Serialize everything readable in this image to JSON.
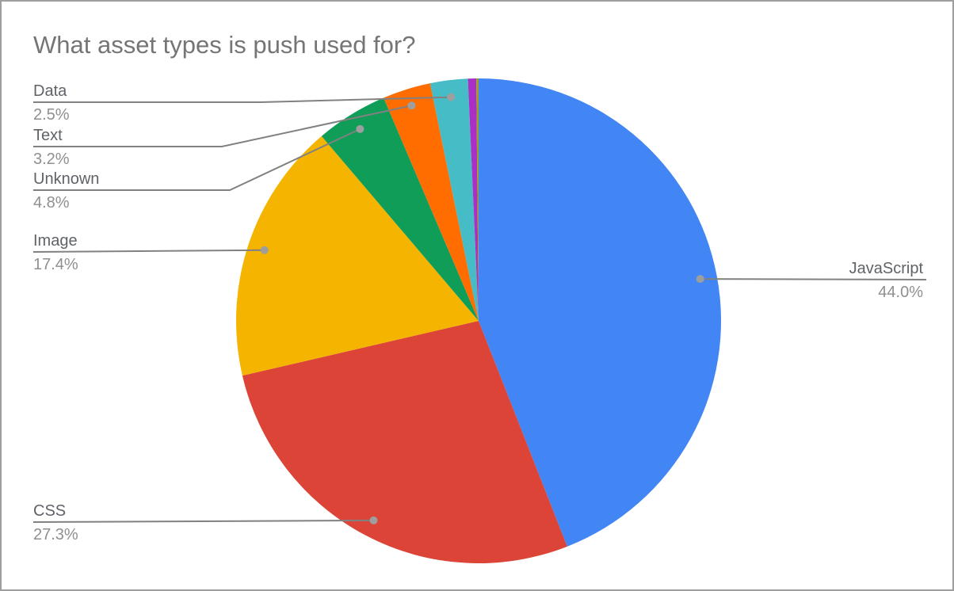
{
  "chart_data": {
    "type": "pie",
    "title": "What asset types is push used for?",
    "legend_position": "none",
    "label_style": "callouts-with-leader-lines",
    "start_angle_deg": 0,
    "direction": "clockwise",
    "slices": [
      {
        "label": "JavaScript",
        "pct_label": "44.0%",
        "value": 44.0,
        "color": "#4285F4",
        "callout_side": "right"
      },
      {
        "label": "CSS",
        "pct_label": "27.3%",
        "value": 27.3,
        "color": "#DB4437",
        "callout_side": "left"
      },
      {
        "label": "Image",
        "pct_label": "17.4%",
        "value": 17.4,
        "color": "#F4B400",
        "callout_side": "left"
      },
      {
        "label": "Unknown",
        "pct_label": "4.8%",
        "value": 4.8,
        "color": "#0F9D58",
        "callout_side": "left"
      },
      {
        "label": "Text",
        "pct_label": "3.2%",
        "value": 3.2,
        "color": "#FF6D00",
        "callout_side": "left"
      },
      {
        "label": "Data",
        "pct_label": "2.5%",
        "value": 2.5,
        "color": "#46BDC6",
        "callout_side": "left"
      },
      {
        "label": "",
        "pct_label": "",
        "value": 0.55,
        "color": "#AA2FC6",
        "callout_side": "none"
      },
      {
        "label": "",
        "pct_label": "",
        "value": 0.15,
        "color": "#9E9D24",
        "callout_side": "none"
      }
    ],
    "colors": {
      "title_text": "#757575",
      "slice_name_text": "#5F6368",
      "slice_pct_text": "#8F8F8F",
      "leader_line": "#818181",
      "leader_dot": "#9E9E9E",
      "frame_border": "#9E9E9E",
      "background": "#FFFFFF"
    }
  }
}
